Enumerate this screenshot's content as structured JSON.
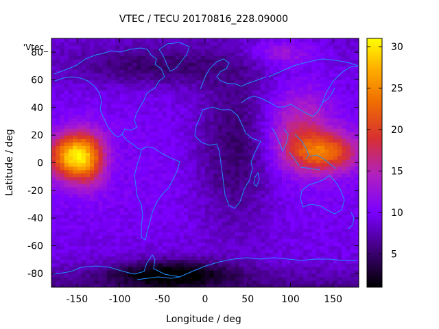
{
  "chart_data": {
    "type": "heatmap",
    "title": "VTEC / TECU 20170816_228.09000",
    "xlabel": "Longitude / deg",
    "ylabel": "Latitude / deg",
    "xlim": [
      -180,
      180
    ],
    "ylim": [
      -90,
      90
    ],
    "x_ticks": [
      "-150",
      "-100",
      "-50",
      "0",
      "50",
      "100",
      "150"
    ],
    "x_tick_values": [
      -150,
      -100,
      -50,
      0,
      50,
      100,
      150
    ],
    "y_ticks": [
      "-80",
      "-60",
      "-40",
      "-20",
      "0",
      "20",
      "40",
      "60",
      "80"
    ],
    "y_tick_values": [
      -80,
      -60,
      -40,
      -20,
      0,
      20,
      40,
      60,
      80
    ],
    "colorbar_ticks": [
      "5",
      "10",
      "15",
      "20",
      "25",
      "30"
    ],
    "colorbar_tick_values": [
      5,
      10,
      15,
      20,
      25,
      30
    ],
    "colorbar_range": [
      1,
      31
    ],
    "legend_label": "'Vtec_",
    "grid_resolution_deg": [
      5,
      2.5
    ],
    "features": [
      {
        "lon": -155,
        "lat": 5,
        "lon_width": 28,
        "lat_width": 16,
        "vtec": 18
      },
      {
        "lon": -135,
        "lat": 2,
        "lon_width": 20,
        "lat_width": 22,
        "vtec": 6
      },
      {
        "lon": 140,
        "lat": 8,
        "lon_width": 40,
        "lat_width": 14,
        "vtec": 12
      },
      {
        "lon": 110,
        "lat": 25,
        "lon_width": 38,
        "lat_width": 28,
        "vtec": 6
      },
      {
        "lon": 35,
        "lat": 10,
        "lon_width": 45,
        "lat_width": 55,
        "vtec": -5
      },
      {
        "lon": -60,
        "lat": 70,
        "lon_width": 100,
        "lat_width": 14,
        "vtec": -4
      },
      {
        "lon": -40,
        "lat": -80,
        "lon_width": 70,
        "lat_width": 10,
        "vtec": -8
      },
      {
        "lon": 90,
        "lat": 80,
        "lon_width": 40,
        "lat_width": 10,
        "vtec": 4
      }
    ]
  },
  "colors": {
    "coastline": "#1f8fff",
    "frame": "#000000"
  }
}
